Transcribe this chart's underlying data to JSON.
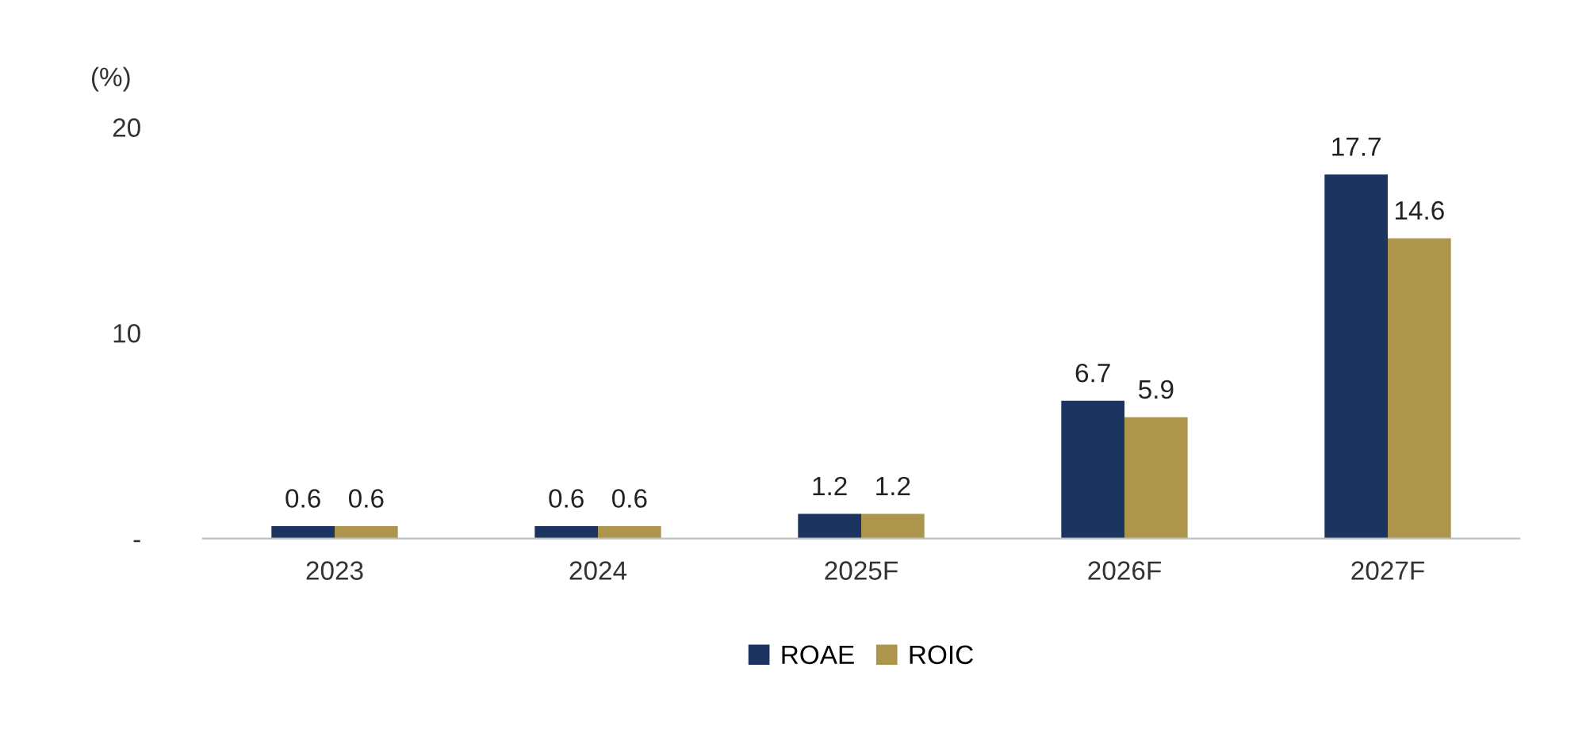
{
  "chart_data": {
    "type": "bar",
    "ylabel": "(%)",
    "categories": [
      "2023",
      "2024",
      "2025F",
      "2026F",
      "2027F"
    ],
    "series": [
      {
        "name": "ROAE",
        "color": "#1b3560",
        "values": [
          0.6,
          0.6,
          1.2,
          6.7,
          17.7
        ]
      },
      {
        "name": "ROIC",
        "color": "#ad964c",
        "values": [
          0.6,
          0.6,
          1.2,
          5.9,
          14.6
        ]
      }
    ],
    "ylim": [
      0,
      20
    ],
    "yticks": [
      {
        "value": 0,
        "label": "-"
      },
      10,
      20
    ],
    "data_labels": true,
    "grid": false,
    "legend": "bottom"
  }
}
